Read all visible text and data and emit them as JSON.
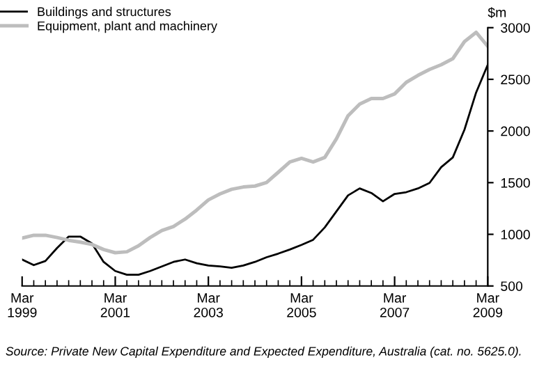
{
  "chart_data": {
    "type": "line",
    "ylabel": "$m",
    "categories": [
      "Mar\n1999",
      null,
      null,
      null,
      null,
      null,
      null,
      null,
      "Mar\n2001",
      null,
      null,
      null,
      null,
      null,
      null,
      null,
      "Mar\n2003",
      null,
      null,
      null,
      null,
      null,
      null,
      null,
      "Mar\n2005",
      null,
      null,
      null,
      null,
      null,
      null,
      null,
      "Mar\n2007",
      null,
      null,
      null,
      null,
      null,
      null,
      null,
      "Mar\n2009"
    ],
    "series": [
      {
        "name": "Buildings and structures",
        "color": "#000000",
        "values": [
          756,
          702,
          742,
          867,
          978,
          978,
          911,
          733,
          645,
          609,
          609,
          645,
          689,
          733,
          756,
          720,
          698,
          689,
          676,
          698,
          733,
          778,
          813,
          853,
          898,
          947,
          1067,
          1222,
          1377,
          1444,
          1400,
          1320,
          1391,
          1408,
          1444,
          1497,
          1650,
          1744,
          2013,
          2372,
          2641
        ]
      },
      {
        "name": "Equipment, plant and machinery",
        "color": "#bdbdbd",
        "values": [
          964,
          991,
          991,
          969,
          942,
          924,
          902,
          853,
          822,
          831,
          889,
          969,
          1036,
          1076,
          1147,
          1235,
          1333,
          1391,
          1436,
          1458,
          1467,
          1502,
          1600,
          1700,
          1735,
          1700,
          1744,
          1924,
          2148,
          2260,
          2314,
          2314,
          2359,
          2471,
          2538,
          2596,
          2641,
          2700,
          2865,
          2955,
          2820
        ]
      }
    ],
    "ylim": [
      500,
      3000
    ],
    "yticks": [
      500,
      1000,
      1500,
      2000,
      2500,
      3000
    ],
    "grid": false,
    "legend": "top left",
    "marker": "none",
    "line_style": "solid",
    "annotations": [
      "Source: Private New Capital Expenditure and Expected Expenditure, Australia (cat. no. 5625.0)."
    ]
  }
}
